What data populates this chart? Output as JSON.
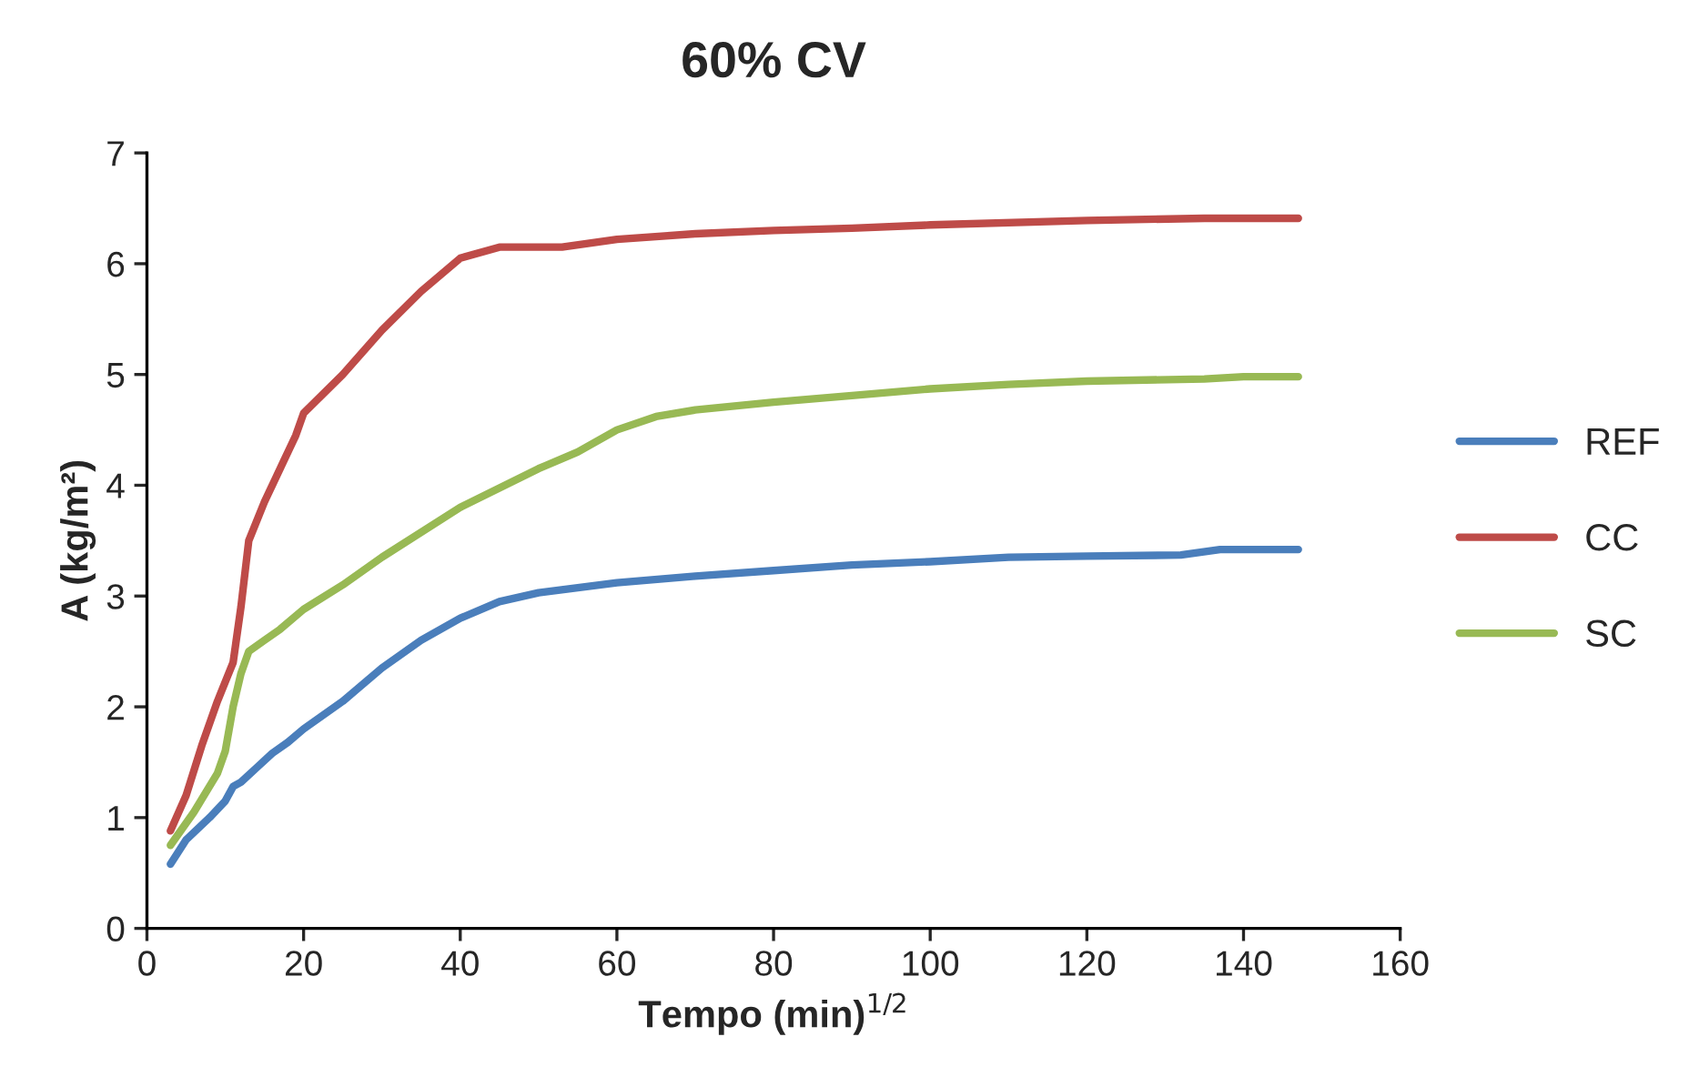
{
  "chart_data": {
    "type": "line",
    "title": "60% CV",
    "xlabel": "Tempo (min)$^{1/2}$",
    "ylabel": "A (kg/m²)",
    "xlim": [
      0,
      160
    ],
    "xticks": [
      0,
      20,
      40,
      60,
      80,
      100,
      120,
      140,
      160
    ],
    "ylim": [
      0,
      7
    ],
    "yticks": [
      0,
      1,
      2,
      3,
      4,
      5,
      6,
      7
    ],
    "grid": false,
    "legend": "right",
    "marker": "none",
    "line_style": "solid",
    "series": [
      {
        "name": "REF",
        "color": "#4a7ebb",
        "x": [
          3,
          5,
          8,
          10,
          11,
          12,
          14,
          16,
          18,
          20,
          25,
          30,
          35,
          40,
          45,
          50,
          60,
          70,
          80,
          90,
          100,
          110,
          120,
          132,
          137,
          147
        ],
        "values": [
          0.58,
          0.8,
          1.0,
          1.15,
          1.28,
          1.32,
          1.45,
          1.58,
          1.68,
          1.8,
          2.05,
          2.35,
          2.6,
          2.8,
          2.95,
          3.03,
          3.12,
          3.18,
          3.23,
          3.28,
          3.31,
          3.35,
          3.36,
          3.37,
          3.42,
          3.42
        ]
      },
      {
        "name": "CC",
        "color": "#be4b48",
        "x": [
          3,
          5,
          7,
          9,
          11,
          12,
          13,
          15,
          17,
          19,
          20,
          25,
          30,
          35,
          40,
          45,
          53,
          60,
          70,
          80,
          90,
          100,
          120,
          135,
          147
        ],
        "values": [
          0.88,
          1.2,
          1.65,
          2.05,
          2.4,
          2.9,
          3.5,
          3.85,
          4.15,
          4.45,
          4.65,
          5.0,
          5.4,
          5.75,
          6.05,
          6.15,
          6.15,
          6.22,
          6.27,
          6.3,
          6.32,
          6.35,
          6.39,
          6.41,
          6.41
        ]
      },
      {
        "name": "SC",
        "color": "#98b954",
        "x": [
          3,
          6,
          9,
          10,
          11,
          12,
          13,
          15,
          17,
          20,
          25,
          30,
          40,
          50,
          55,
          60,
          65,
          70,
          80,
          90,
          100,
          110,
          120,
          135,
          140,
          147
        ],
        "values": [
          0.75,
          1.05,
          1.4,
          1.6,
          2.0,
          2.3,
          2.5,
          2.6,
          2.7,
          2.88,
          3.1,
          3.35,
          3.8,
          4.15,
          4.3,
          4.5,
          4.62,
          4.68,
          4.75,
          4.81,
          4.87,
          4.91,
          4.94,
          4.96,
          4.98,
          4.98
        ]
      }
    ]
  }
}
